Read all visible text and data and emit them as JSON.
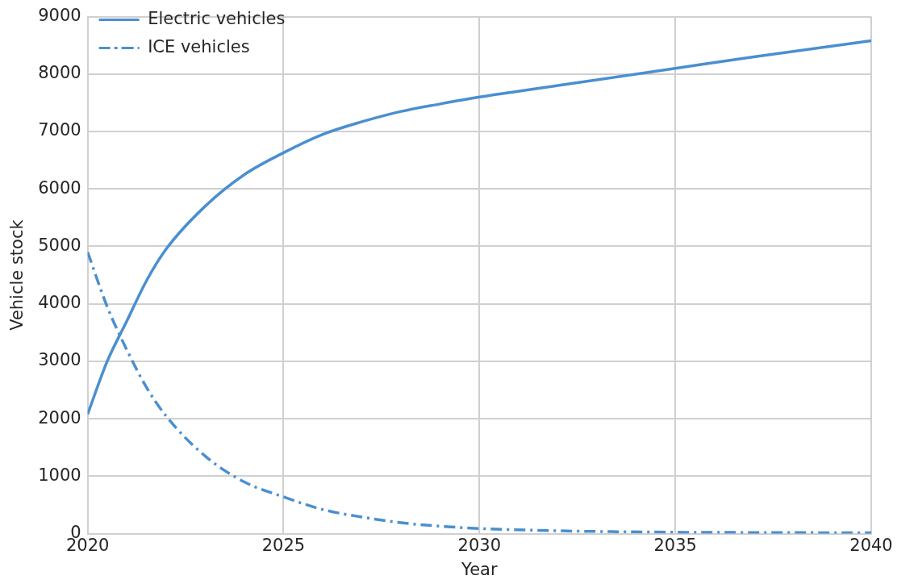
{
  "chart_data": {
    "type": "line",
    "xlabel": "Year",
    "ylabel": "Vehicle stock",
    "xlim": [
      2020,
      2040
    ],
    "xticks": [
      2020,
      2025,
      2030,
      2035,
      2040
    ],
    "ylim": [
      0,
      9000
    ],
    "yticks": [
      0,
      1000,
      2000,
      3000,
      4000,
      5000,
      6000,
      7000,
      8000,
      9000
    ],
    "grid": true,
    "legend": "top left",
    "marker": "none",
    "x": [
      2020,
      2020.5,
      2021,
      2021.5,
      2022,
      2023,
      2024,
      2025,
      2026,
      2027,
      2028,
      2029,
      2030,
      2032,
      2035,
      2037,
      2040
    ],
    "series": [
      {
        "name": "Electric vehicles",
        "color": "#4a8fd0",
        "line_style": "solid",
        "values": [
          2080,
          3000,
          3700,
          4400,
          4950,
          5700,
          6250,
          6630,
          6950,
          7170,
          7350,
          7480,
          7600,
          7800,
          8100,
          8300,
          8580
        ]
      },
      {
        "name": "ICE vehicles",
        "color": "#4a8fd0",
        "line_style": "dashed",
        "values": [
          4900,
          3950,
          3200,
          2550,
          2050,
          1350,
          900,
          640,
          420,
          290,
          190,
          130,
          90,
          50,
          25,
          20,
          15
        ]
      }
    ]
  }
}
